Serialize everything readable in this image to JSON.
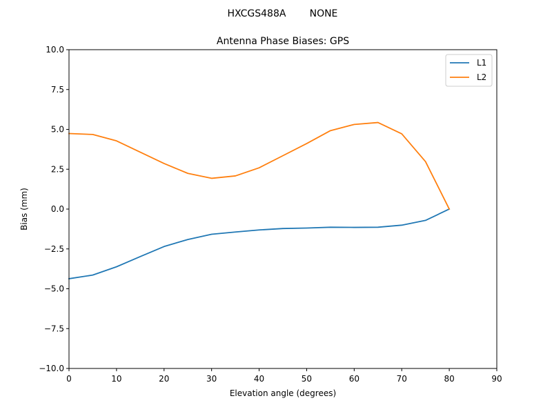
{
  "figure": {
    "suptitle_left": "HXCGS488A",
    "suptitle_right": "NONE"
  },
  "chart_data": {
    "type": "line",
    "title": "Antenna Phase Biases: GPS",
    "xlabel": "Elevation angle (degrees)",
    "ylabel": "Bias (mm)",
    "xlim": [
      0,
      90
    ],
    "ylim": [
      -10,
      10
    ],
    "x_ticks": [
      0,
      10,
      20,
      30,
      40,
      50,
      60,
      70,
      80,
      90
    ],
    "x_tick_labels": [
      "0",
      "10",
      "20",
      "30",
      "40",
      "50",
      "60",
      "70",
      "80",
      "90"
    ],
    "y_ticks": [
      10,
      7.5,
      5,
      2.5,
      0,
      -2.5,
      -5,
      -7.5,
      -10
    ],
    "y_tick_labels": [
      "10.0",
      "7.5",
      "5.0",
      "2.5",
      "0.0",
      "−2.5",
      "−5.0",
      "−7.5",
      "−10.0"
    ],
    "grid": false,
    "legend_position": "top-right",
    "x": [
      0,
      5,
      10,
      15,
      20,
      25,
      30,
      35,
      40,
      45,
      50,
      55,
      60,
      65,
      70,
      75,
      80
    ],
    "series": [
      {
        "name": "L1",
        "color": "#1f77b4",
        "values": [
          -4.37,
          -4.14,
          -3.62,
          -2.98,
          -2.35,
          -1.91,
          -1.58,
          -1.44,
          -1.31,
          -1.22,
          -1.19,
          -1.14,
          -1.15,
          -1.14,
          -1.01,
          -0.71,
          0.0
        ]
      },
      {
        "name": "L2",
        "color": "#ff7f0e",
        "values": [
          4.74,
          4.68,
          4.28,
          3.57,
          2.86,
          2.24,
          1.93,
          2.08,
          2.59,
          3.35,
          4.11,
          4.92,
          5.31,
          5.43,
          4.72,
          2.98,
          0.0
        ]
      }
    ]
  }
}
